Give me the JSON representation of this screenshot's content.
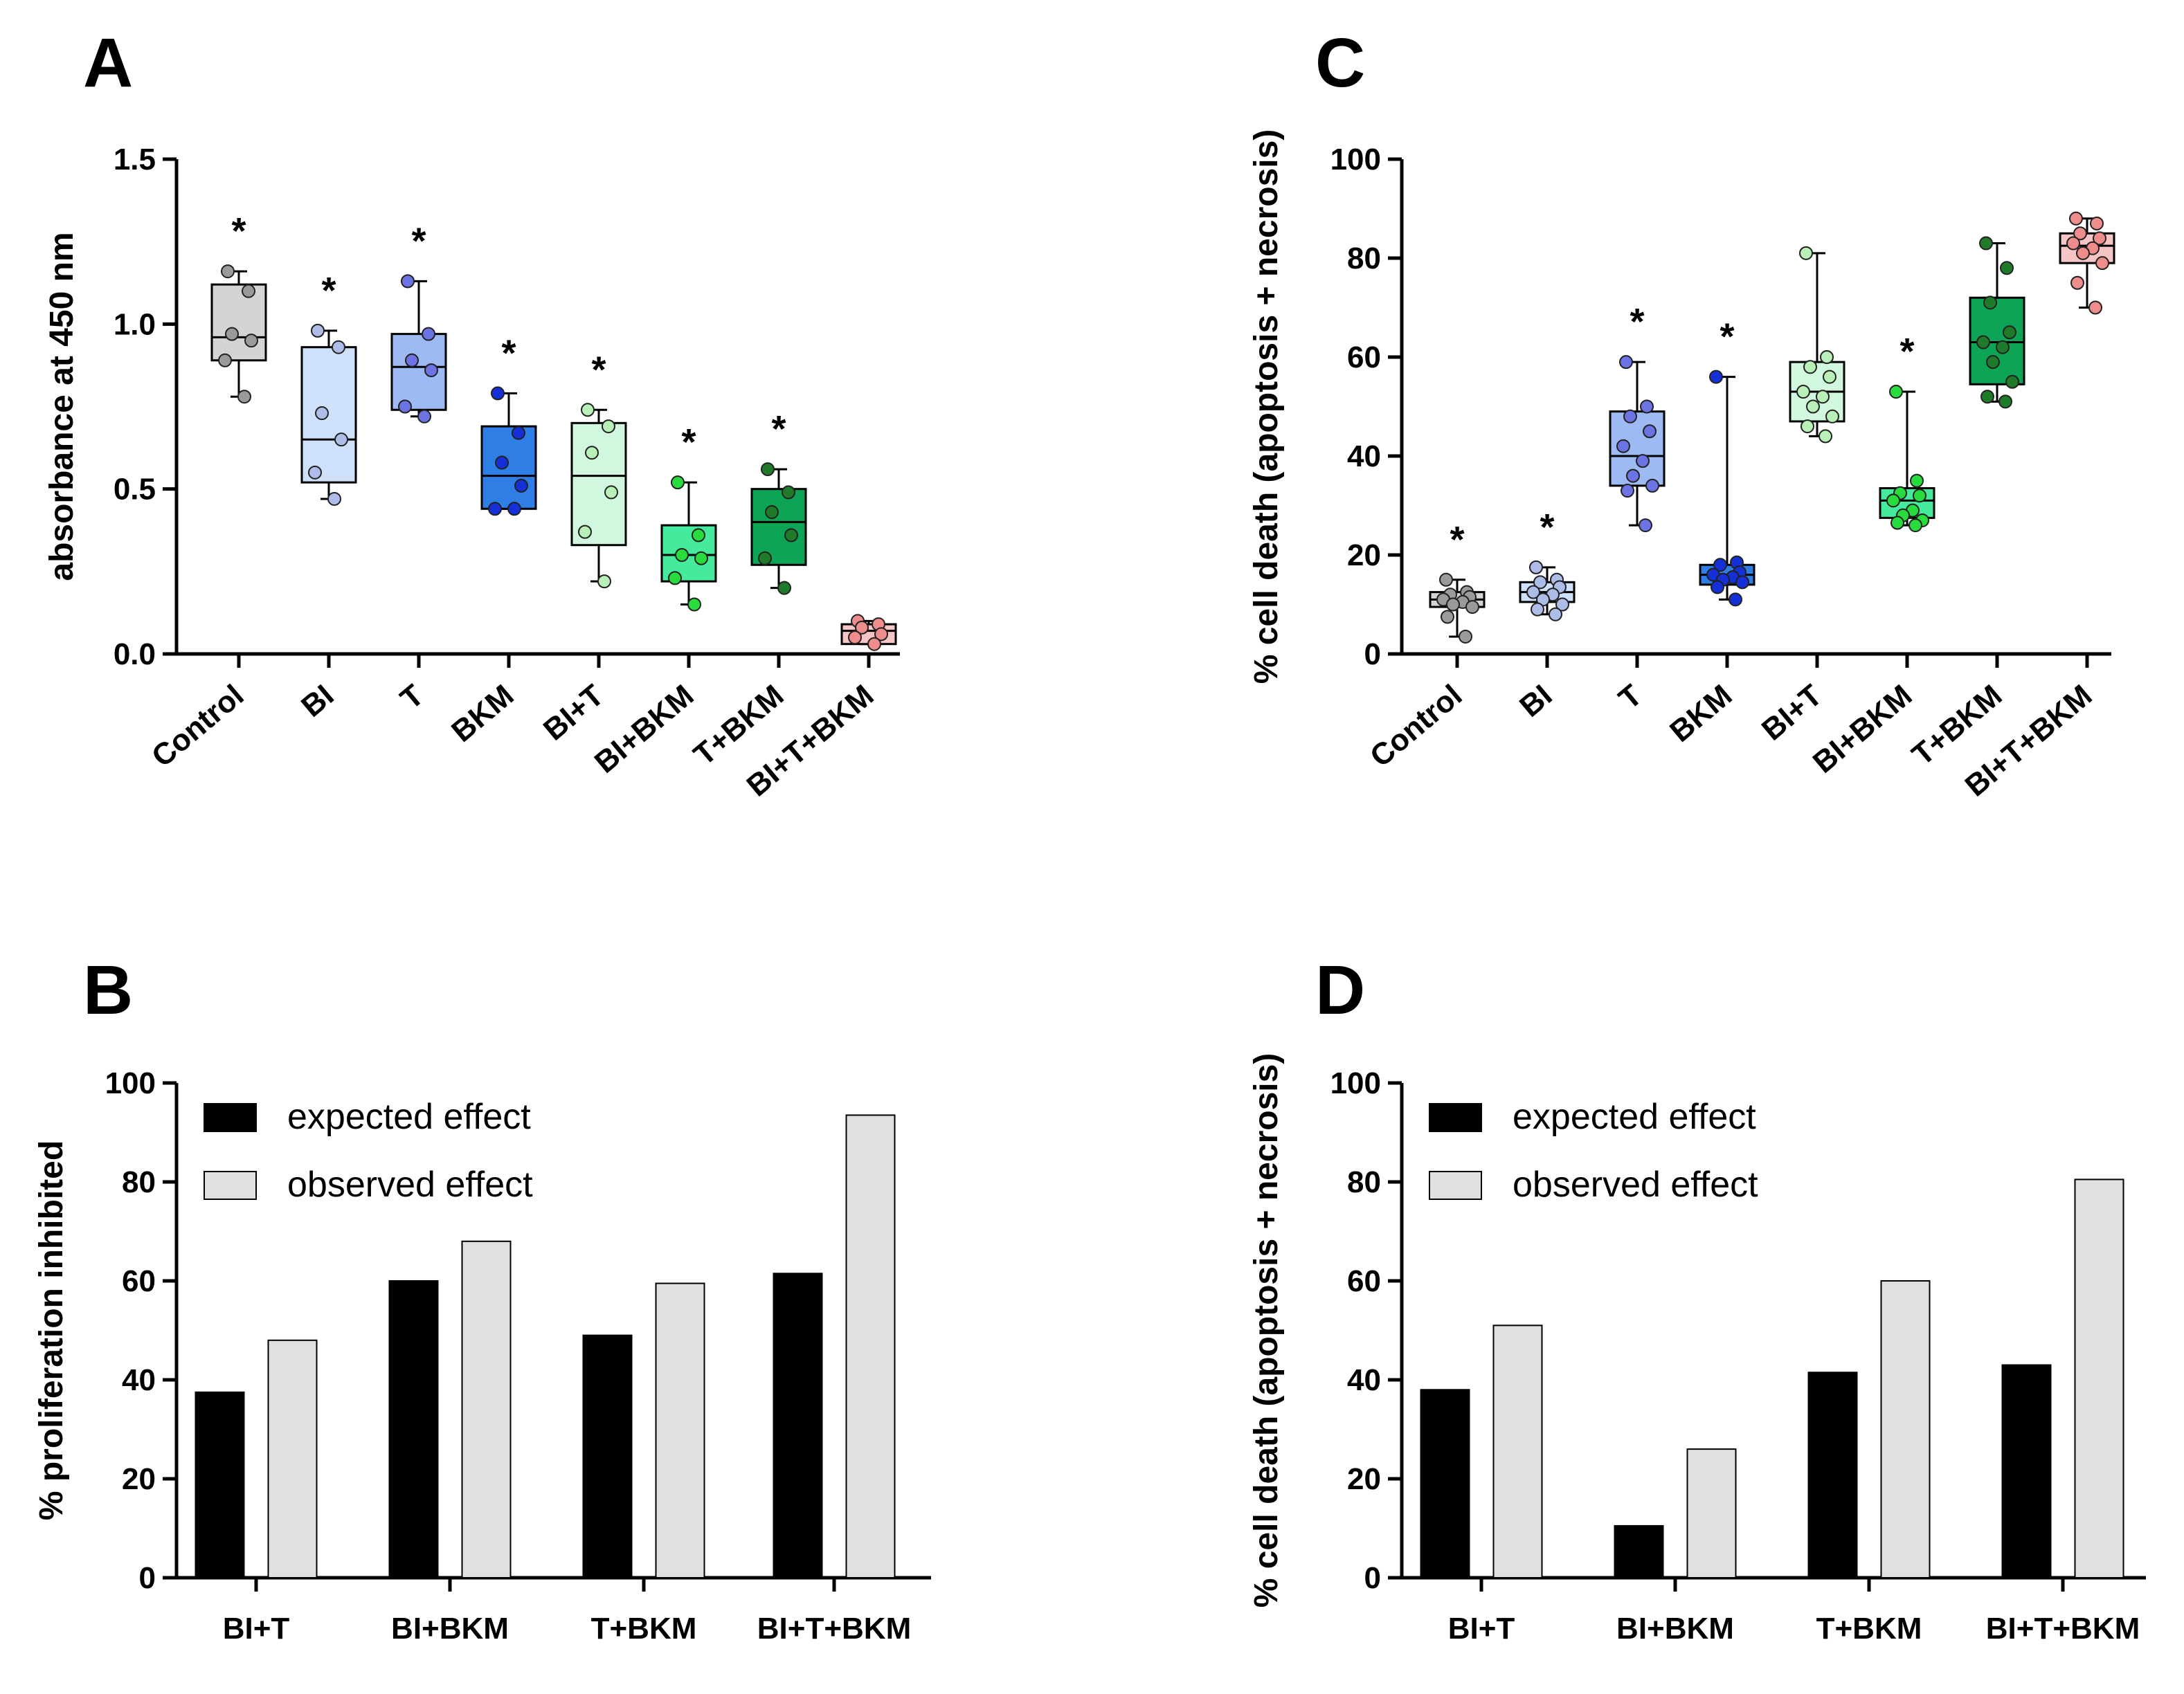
{
  "chart_data": [
    {
      "panel": "A",
      "type": "box",
      "ylabel": "absorbance at 450 nm",
      "ylim": [
        0,
        1.5
      ],
      "yticks": [
        "0.0",
        "0.5",
        "1.0",
        "1.5"
      ],
      "categories": [
        "Control",
        "BI",
        "T",
        "BKM",
        "BI+T",
        "BI+BKM",
        "T+BKM",
        "BI+T+BKM"
      ],
      "significance": [
        "*",
        "*",
        "*",
        "*",
        "*",
        "*",
        "*",
        ""
      ],
      "boxes": [
        {
          "min": 0.78,
          "q1": 0.89,
          "median": 0.96,
          "q3": 1.12,
          "max": 1.16,
          "points": [
            1.16,
            1.1,
            0.97,
            0.95,
            0.89,
            0.78
          ]
        },
        {
          "min": 0.47,
          "q1": 0.52,
          "median": 0.65,
          "q3": 0.93,
          "max": 0.98,
          "points": [
            0.98,
            0.93,
            0.73,
            0.65,
            0.55,
            0.47
          ]
        },
        {
          "min": 0.72,
          "q1": 0.74,
          "median": 0.87,
          "q3": 0.97,
          "max": 1.13,
          "points": [
            1.13,
            0.97,
            0.89,
            0.86,
            0.75,
            0.72
          ]
        },
        {
          "min": 0.44,
          "q1": 0.44,
          "median": 0.54,
          "q3": 0.69,
          "max": 0.79,
          "points": [
            0.79,
            0.67,
            0.58,
            0.51,
            0.44,
            0.44
          ]
        },
        {
          "min": 0.22,
          "q1": 0.33,
          "median": 0.54,
          "q3": 0.7,
          "max": 0.74,
          "points": [
            0.74,
            0.69,
            0.61,
            0.49,
            0.37,
            0.22
          ]
        },
        {
          "min": 0.15,
          "q1": 0.22,
          "median": 0.3,
          "q3": 0.39,
          "max": 0.52,
          "points": [
            0.52,
            0.36,
            0.3,
            0.29,
            0.23,
            0.15
          ]
        },
        {
          "min": 0.2,
          "q1": 0.27,
          "median": 0.4,
          "q3": 0.5,
          "max": 0.56,
          "points": [
            0.56,
            0.49,
            0.43,
            0.36,
            0.29,
            0.2
          ]
        },
        {
          "min": 0.03,
          "q1": 0.03,
          "median": 0.07,
          "q3": 0.09,
          "max": 0.1,
          "points": [
            0.1,
            0.09,
            0.08,
            0.06,
            0.05,
            0.03
          ]
        }
      ],
      "colors": [
        "#d4d4d4",
        "#cfe0fb",
        "#9dbbf2",
        "#2f7ee6",
        "#d2f7df",
        "#45ea9c",
        "#0ea456",
        "#f6c5c5"
      ],
      "point_colors": [
        "#9a9a9a",
        "#aebde8",
        "#6c74e4",
        "#1530d6",
        "#b8f0b8",
        "#29dc3e",
        "#1f7a2a",
        "#ef8c8c"
      ]
    },
    {
      "panel": "B",
      "type": "bar",
      "ylabel": "%  proliferation inhibited",
      "ylim": [
        0,
        100
      ],
      "yticks": [
        "0",
        "20",
        "40",
        "60",
        "80",
        "100"
      ],
      "categories": [
        "BI+T",
        "BI+BKM",
        "T+BKM",
        "BI+T+BKM"
      ],
      "series": [
        {
          "name": "expected effect",
          "color": "#000000",
          "values": [
            37.5,
            60,
            49,
            61.5
          ]
        },
        {
          "name": "observed effect",
          "color": "#e0e0e0",
          "values": [
            48,
            68,
            59.5,
            93.5
          ]
        }
      ],
      "legend": "top-left"
    },
    {
      "panel": "C",
      "type": "box",
      "ylabel": "% cell death (apoptosis + necrosis)",
      "ylim": [
        0,
        100
      ],
      "yticks": [
        "0",
        "20",
        "40",
        "60",
        "80",
        "100"
      ],
      "categories": [
        "Control",
        "BI",
        "T",
        "BKM",
        "BI+T",
        "BI+BKM",
        "T+BKM",
        "BI+T+BKM"
      ],
      "significance": [
        "*",
        "*",
        "*",
        "*",
        "",
        "*",
        "",
        ""
      ],
      "boxes": [
        {
          "min": 3.5,
          "q1": 9.5,
          "median": 11,
          "q3": 12.5,
          "max": 15,
          "points": [
            15,
            12.5,
            12,
            11.5,
            11,
            10.5,
            10,
            9.5,
            7.5,
            3.5
          ]
        },
        {
          "min": 8,
          "q1": 10.5,
          "median": 12.5,
          "q3": 14.5,
          "max": 17.5,
          "points": [
            17.5,
            15,
            14.5,
            13.5,
            12.5,
            12,
            11,
            10,
            9,
            8
          ]
        },
        {
          "min": 26,
          "q1": 34,
          "median": 40,
          "q3": 49,
          "max": 59,
          "points": [
            59,
            50,
            48,
            45,
            42,
            39,
            36,
            34,
            33,
            26
          ]
        },
        {
          "min": 11,
          "q1": 14,
          "median": 16,
          "q3": 18,
          "max": 56,
          "points": [
            56,
            18.5,
            18,
            16.5,
            16,
            15.5,
            15,
            14.5,
            13.5,
            11
          ]
        },
        {
          "min": 44,
          "q1": 47,
          "median": 53,
          "q3": 59,
          "max": 81,
          "points": [
            81,
            60,
            58,
            56,
            53,
            52,
            50,
            48,
            46,
            44
          ]
        },
        {
          "min": 26,
          "q1": 27.5,
          "median": 31,
          "q3": 33.5,
          "max": 53,
          "points": [
            53,
            35,
            32.5,
            32,
            31,
            29,
            28,
            27,
            26.5,
            26
          ]
        },
        {
          "min": 51,
          "q1": 54.5,
          "median": 63,
          "q3": 72,
          "max": 83,
          "points": [
            83,
            78,
            71,
            65,
            63,
            62,
            59,
            55,
            52,
            51
          ]
        },
        {
          "min": 70,
          "q1": 79,
          "median": 82.5,
          "q3": 85,
          "max": 88,
          "points": [
            88,
            87,
            85,
            84,
            83,
            82,
            81,
            79,
            75,
            70
          ]
        }
      ],
      "colors": [
        "#d4d4d4",
        "#cfe0fb",
        "#9dbbf2",
        "#2f7ee6",
        "#d2f7df",
        "#45ea9c",
        "#0ea456",
        "#f6c5c5"
      ],
      "point_colors": [
        "#9a9a9a",
        "#aebde8",
        "#6c74e4",
        "#1530d6",
        "#b8f0b8",
        "#29dc3e",
        "#1f7a2a",
        "#ef8c8c"
      ]
    },
    {
      "panel": "D",
      "type": "bar",
      "ylabel": "% cell death (apoptosis + necrosis)",
      "ylim": [
        0,
        100
      ],
      "yticks": [
        "0",
        "20",
        "40",
        "60",
        "80",
        "100"
      ],
      "categories": [
        "BI+T",
        "BI+BKM",
        "T+BKM",
        "BI+T+BKM"
      ],
      "series": [
        {
          "name": "expected effect",
          "color": "#000000",
          "values": [
            38,
            10.5,
            41.5,
            43
          ]
        },
        {
          "name": "observed effect",
          "color": "#e0e0e0",
          "values": [
            51,
            26,
            60,
            80.5
          ]
        }
      ],
      "legend": "top-left"
    }
  ]
}
